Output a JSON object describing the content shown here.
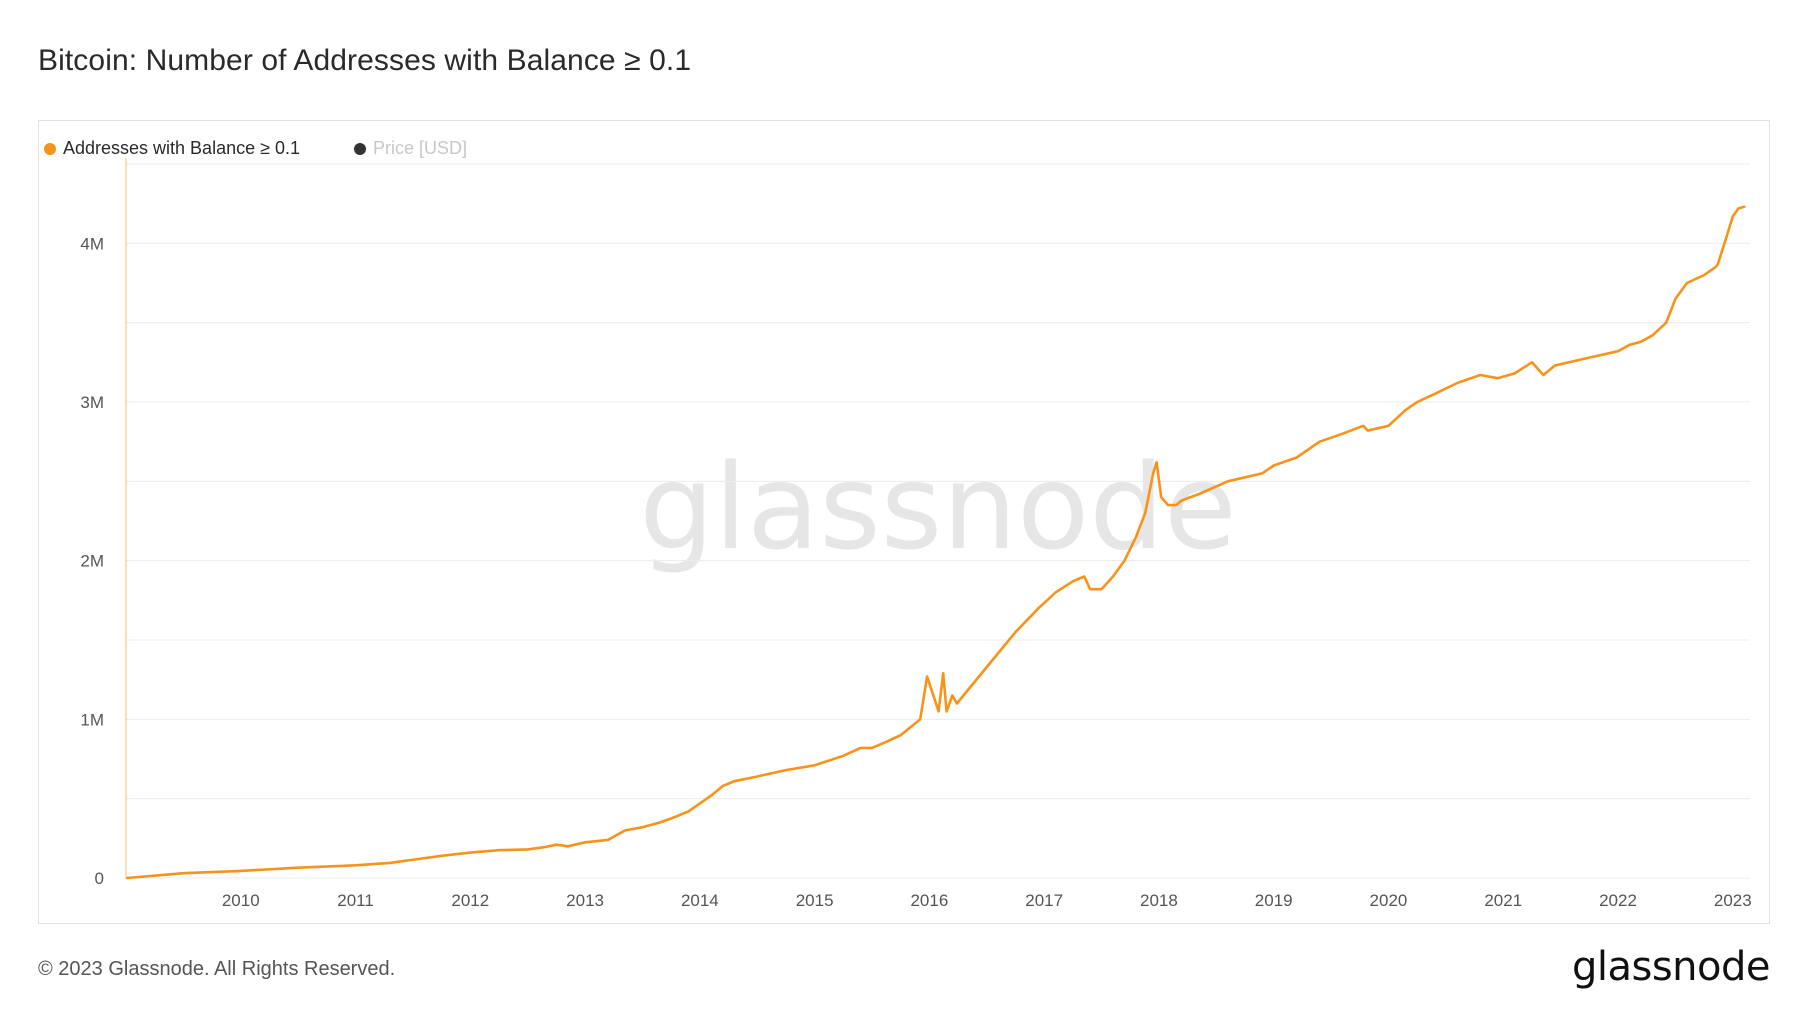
{
  "title": "Bitcoin: Number of Addresses with Balance ≥ 0.1",
  "footer": {
    "copyright": "© 2023 Glassnode. All Rights Reserved.",
    "logo": "glassnode"
  },
  "watermark": "glassnode",
  "colors": {
    "series": "#f7931a",
    "price_legend": "#333333",
    "grid": "#ececec",
    "axis_text": "#555555",
    "watermark": "#e6e6e6"
  },
  "chart_data": {
    "type": "line",
    "title": "Bitcoin: Number of Addresses with Balance ≥ 0.1",
    "xlabel": "",
    "ylabel": "",
    "legend": [
      {
        "name": "Addresses with Balance ≥ 0.1",
        "color": "#f7931a",
        "active": true
      },
      {
        "name": "Price [USD]",
        "color": "#333333",
        "active": false
      }
    ],
    "legend_position": "top-left",
    "grid": true,
    "xlim": [
      2009.0,
      2023.15
    ],
    "ylim": [
      0,
      4500000
    ],
    "x_ticks": [
      2010,
      2011,
      2012,
      2013,
      2014,
      2015,
      2016,
      2017,
      2018,
      2019,
      2020,
      2021,
      2022,
      2023
    ],
    "x_tick_labels": [
      "2010",
      "2011",
      "2012",
      "2013",
      "2014",
      "2015",
      "2016",
      "2017",
      "2018",
      "2019",
      "2020",
      "2021",
      "2022",
      "2023"
    ],
    "y_ticks": [
      0,
      1000000,
      2000000,
      3000000,
      4000000
    ],
    "y_tick_labels": [
      "0",
      "1M",
      "2M",
      "3M",
      "4M"
    ],
    "series": [
      {
        "name": "Addresses with Balance ≥ 0.1",
        "x": [
          2009.01,
          2009.5,
          2010.0,
          2010.5,
          2011.0,
          2011.3,
          2011.45,
          2011.55,
          2011.75,
          2012.0,
          2012.25,
          2012.5,
          2012.65,
          2012.75,
          2012.85,
          2013.0,
          2013.2,
          2013.35,
          2013.5,
          2013.65,
          2013.75,
          2013.9,
          2014.0,
          2014.1,
          2014.2,
          2014.3,
          2014.5,
          2014.75,
          2015.0,
          2015.25,
          2015.4,
          2015.5,
          2015.6,
          2015.75,
          2015.92,
          2015.98,
          2016.08,
          2016.12,
          2016.15,
          2016.2,
          2016.24,
          2016.5,
          2016.75,
          2016.95,
          2017.1,
          2017.25,
          2017.35,
          2017.4,
          2017.5,
          2017.6,
          2017.7,
          2017.8,
          2017.88,
          2017.95,
          2017.98,
          2018.02,
          2018.08,
          2018.15,
          2018.2,
          2018.35,
          2018.6,
          2018.9,
          2019.0,
          2019.2,
          2019.4,
          2019.6,
          2019.78,
          2019.82,
          2020.0,
          2020.15,
          2020.25,
          2020.4,
          2020.6,
          2020.8,
          2020.95,
          2021.1,
          2021.25,
          2021.35,
          2021.45,
          2021.75,
          2022.0,
          2022.1,
          2022.2,
          2022.3,
          2022.42,
          2022.5,
          2022.6,
          2022.75,
          2022.85,
          2022.87,
          2022.95,
          2023.0,
          2023.05,
          2023.1
        ],
        "y": [
          0,
          30000,
          45000,
          65000,
          80000,
          95000,
          110000,
          120000,
          140000,
          160000,
          175000,
          180000,
          195000,
          210000,
          200000,
          225000,
          240000,
          300000,
          320000,
          350000,
          375000,
          420000,
          470000,
          520000,
          580000,
          610000,
          640000,
          680000,
          710000,
          770000,
          820000,
          820000,
          850000,
          900000,
          1000000,
          1270000,
          1050000,
          1290000,
          1050000,
          1150000,
          1100000,
          1330000,
          1550000,
          1700000,
          1800000,
          1870000,
          1900000,
          1820000,
          1820000,
          1900000,
          2000000,
          2150000,
          2300000,
          2550000,
          2620000,
          2400000,
          2350000,
          2350000,
          2380000,
          2420000,
          2500000,
          2550000,
          2600000,
          2650000,
          2750000,
          2800000,
          2850000,
          2820000,
          2850000,
          2950000,
          3000000,
          3050000,
          3120000,
          3170000,
          3150000,
          3180000,
          3250000,
          3170000,
          3230000,
          3280000,
          3320000,
          3360000,
          3380000,
          3420000,
          3500000,
          3650000,
          3750000,
          3800000,
          3850000,
          3870000,
          4050000,
          4170000,
          4220000,
          4230000
        ]
      }
    ]
  }
}
